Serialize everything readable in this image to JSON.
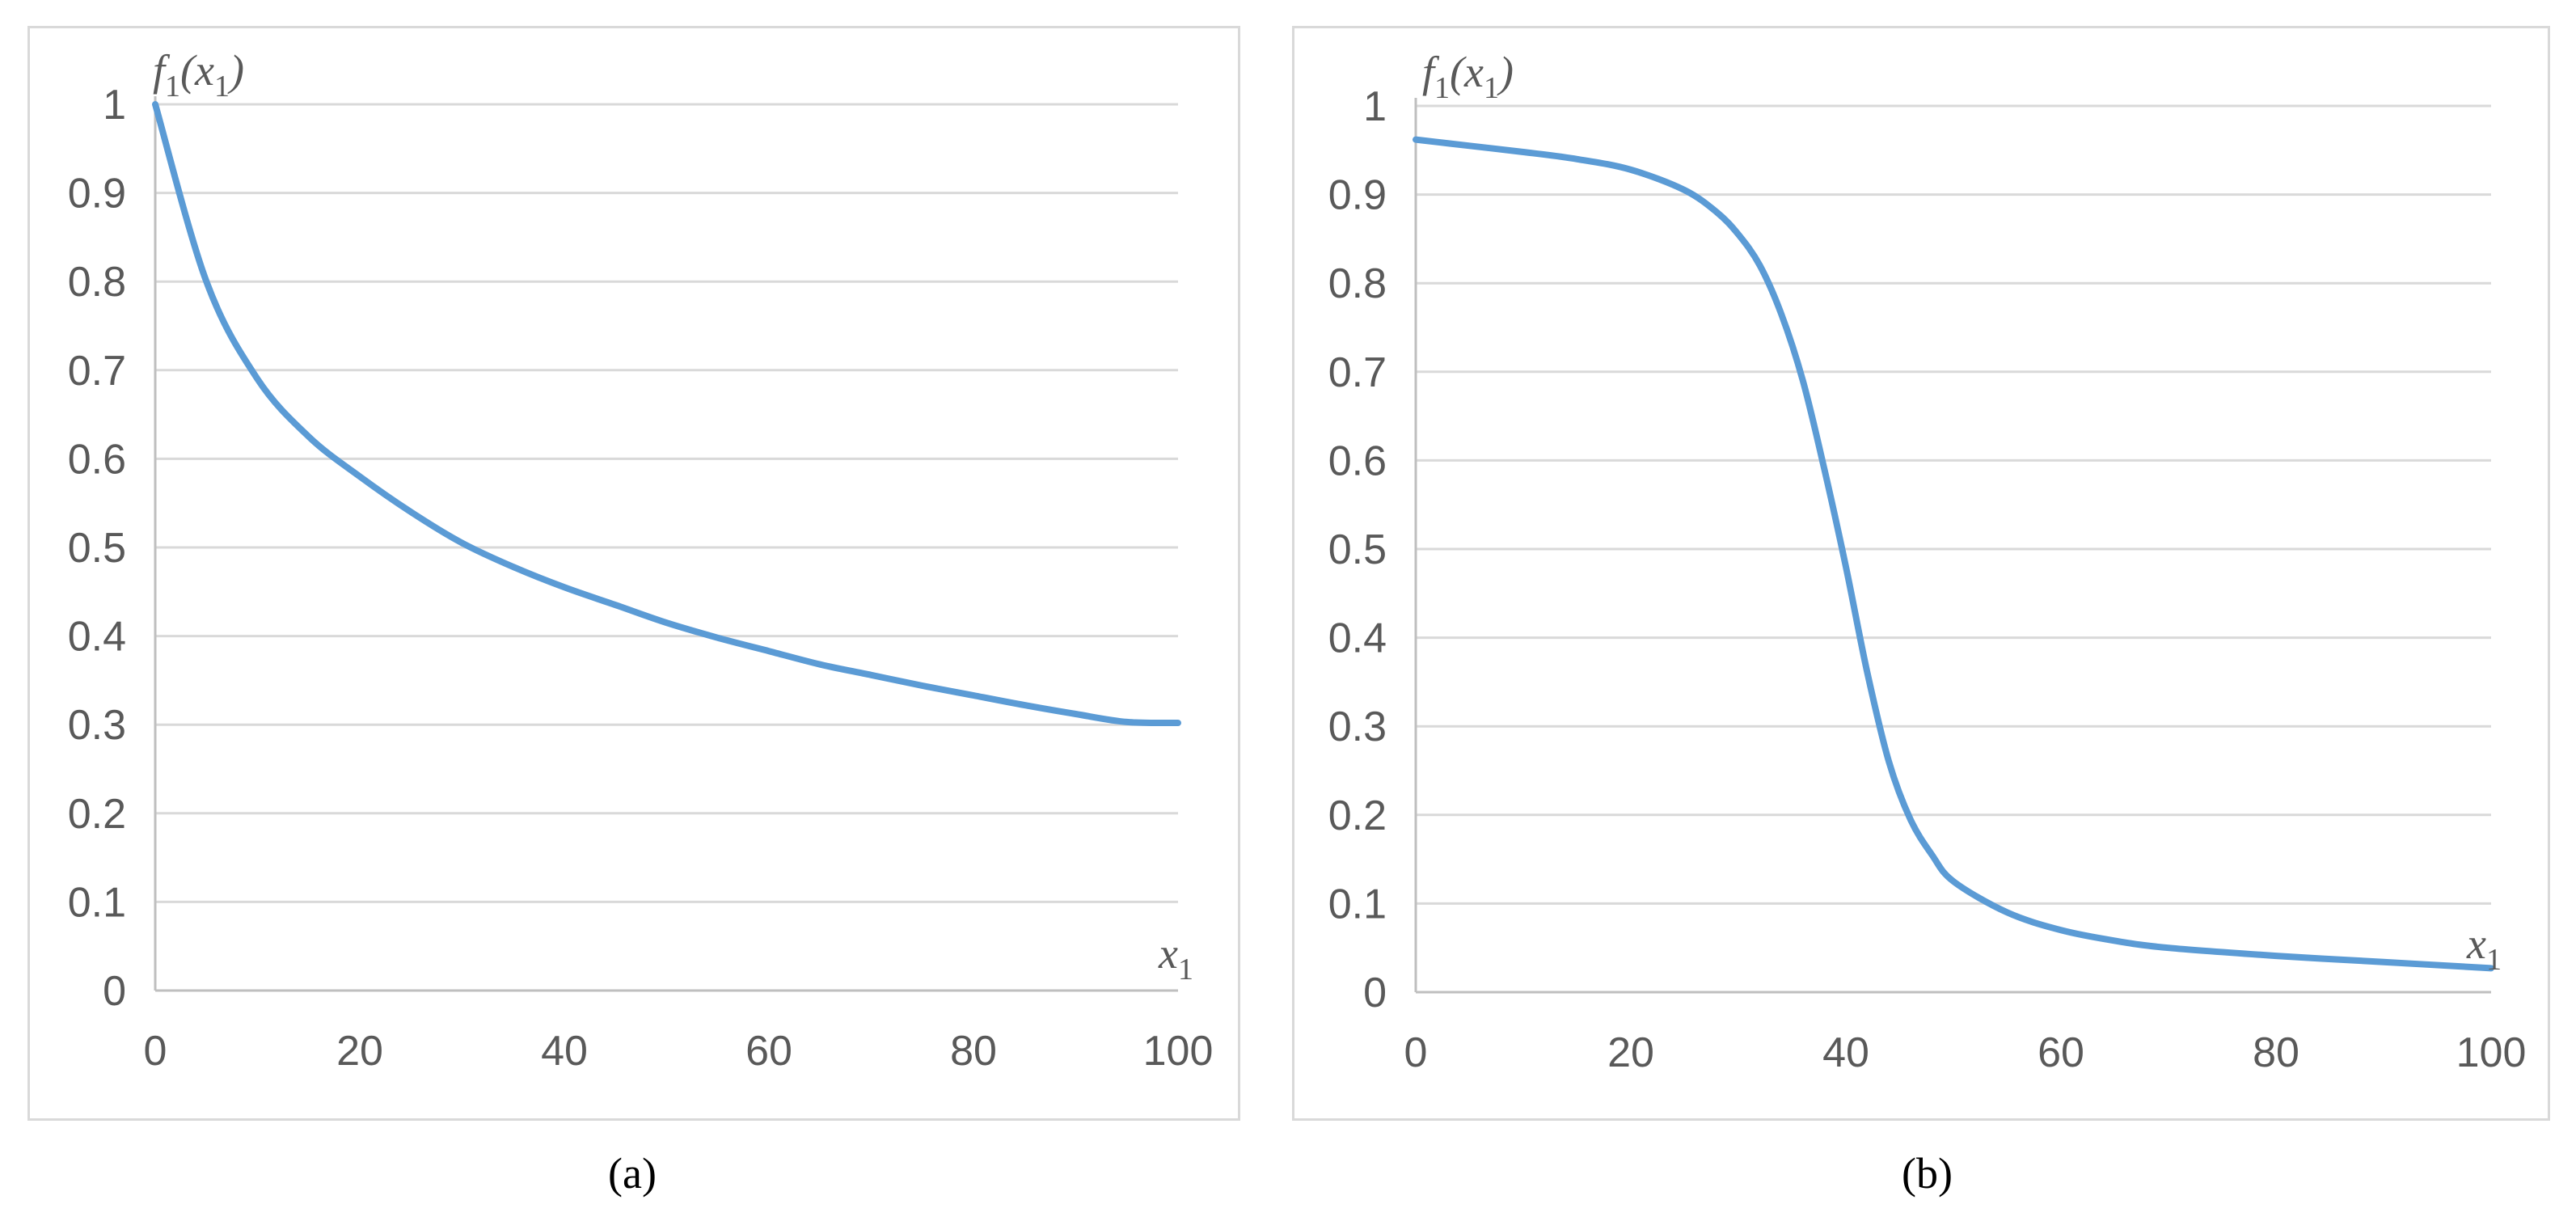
{
  "chart_data": [
    {
      "type": "line",
      "panel_caption": "(a)",
      "ylabel": {
        "main": "f",
        "sub1": "1",
        "open": "(",
        "var": "x",
        "sub2": "1",
        "close": ")"
      },
      "xlabel": {
        "var": "x",
        "sub": "1"
      },
      "xlim": [
        0,
        100
      ],
      "ylim": [
        0,
        1
      ],
      "x_ticks": [
        "0",
        "20",
        "40",
        "60",
        "80",
        "100"
      ],
      "y_ticks": [
        "0",
        "0.1",
        "0.2",
        "0.3",
        "0.4",
        "0.5",
        "0.6",
        "0.7",
        "0.8",
        "0.9",
        "1"
      ],
      "grid": true,
      "series": [
        {
          "name": "f1(x1)",
          "color": "#5b9bd5",
          "x": [
            0,
            5,
            10,
            15,
            20,
            25,
            30,
            35,
            40,
            45,
            50,
            55,
            60,
            65,
            70,
            75,
            80,
            85,
            90,
            95,
            100
          ],
          "y": [
            1.0,
            0.8,
            0.69,
            0.625,
            0.58,
            0.54,
            0.505,
            0.478,
            0.455,
            0.435,
            0.415,
            0.398,
            0.383,
            0.368,
            0.356,
            0.344,
            0.333,
            0.322,
            0.312,
            0.303,
            0.302
          ]
        }
      ]
    },
    {
      "type": "line",
      "panel_caption": "(b)",
      "ylabel": {
        "main": "f",
        "sub1": "1",
        "open": "(",
        "var": "x",
        "sub2": "1",
        "close": ")"
      },
      "xlabel": {
        "var": "x",
        "sub": "1"
      },
      "xlim": [
        0,
        100
      ],
      "ylim": [
        0,
        1
      ],
      "x_ticks": [
        "0",
        "20",
        "40",
        "60",
        "80",
        "100"
      ],
      "y_ticks": [
        "0",
        "0.1",
        "0.2",
        "0.3",
        "0.4",
        "0.5",
        "0.6",
        "0.7",
        "0.8",
        "0.9",
        "1"
      ],
      "grid": true,
      "series": [
        {
          "name": "f1(x1)",
          "color": "#5b9bd5",
          "x": [
            0,
            5,
            10,
            15,
            20,
            25,
            28,
            30,
            32,
            34,
            36,
            38,
            40,
            42,
            44,
            46,
            48,
            50,
            55,
            60,
            65,
            70,
            80,
            90,
            100
          ],
          "y": [
            0.962,
            0.955,
            0.948,
            0.94,
            0.928,
            0.905,
            0.88,
            0.855,
            0.82,
            0.765,
            0.69,
            0.59,
            0.48,
            0.36,
            0.26,
            0.195,
            0.155,
            0.125,
            0.09,
            0.07,
            0.058,
            0.05,
            0.041,
            0.034,
            0.027
          ]
        }
      ]
    }
  ]
}
